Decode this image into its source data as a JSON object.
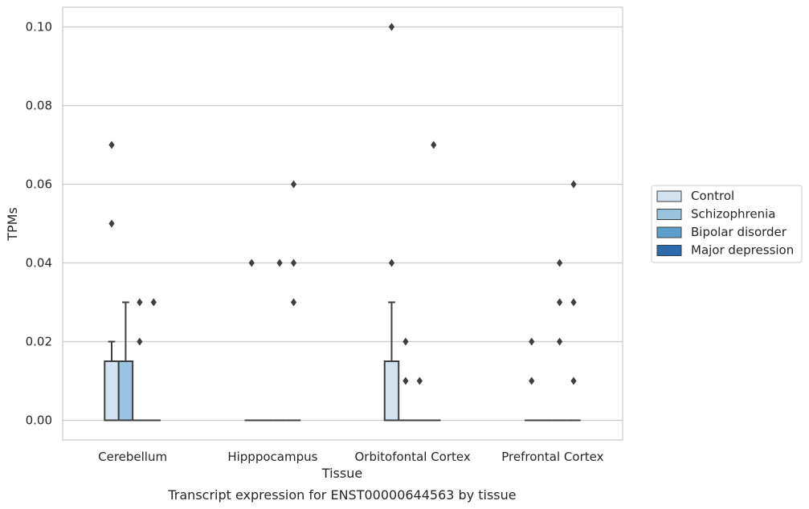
{
  "chart_data": {
    "type": "boxplot",
    "title": "Transcript expression for ENST00000644563 by tissue",
    "xlabel": "Tissue",
    "ylabel": "TPMs",
    "ylim": [
      -0.005,
      0.105
    ],
    "yticks": [
      "0.00",
      "0.02",
      "0.04",
      "0.06",
      "0.08",
      "0.10"
    ],
    "ytick_values": [
      0.0,
      0.02,
      0.04,
      0.06,
      0.08,
      0.1
    ],
    "grid": "horizontal",
    "legend_position": "right",
    "categories": [
      "Cerebellum",
      "Hipppocampus",
      "Orbitofontal Cortex",
      "Prefrontal Cortex"
    ],
    "series": [
      {
        "name": "Control",
        "color": "#d2e2f1",
        "boxes": [
          {
            "q1": 0.0,
            "median": 0.0,
            "q3": 0.015,
            "whisker_low": 0.0,
            "whisker_high": 0.02,
            "outliers": [
              0.05,
              0.07
            ]
          },
          {
            "q1": 0.0,
            "median": 0.0,
            "q3": 0.0,
            "whisker_low": 0.0,
            "whisker_high": 0.0,
            "outliers": [
              0.04
            ]
          },
          {
            "q1": 0.0,
            "median": 0.0,
            "q3": 0.015,
            "whisker_low": 0.0,
            "whisker_high": 0.03,
            "outliers": [
              0.04,
              0.1
            ]
          },
          {
            "q1": 0.0,
            "median": 0.0,
            "q3": 0.0,
            "whisker_low": 0.0,
            "whisker_high": 0.0,
            "outliers": [
              0.01,
              0.02
            ]
          }
        ]
      },
      {
        "name": "Schizophrenia",
        "color": "#9ac3df",
        "boxes": [
          {
            "q1": 0.0,
            "median": 0.0,
            "q3": 0.015,
            "whisker_low": 0.0,
            "whisker_high": 0.03,
            "outliers": []
          },
          {
            "q1": 0.0,
            "median": 0.0,
            "q3": 0.0,
            "whisker_low": 0.0,
            "whisker_high": 0.0,
            "outliers": []
          },
          {
            "q1": 0.0,
            "median": 0.0,
            "q3": 0.0,
            "whisker_low": 0.0,
            "whisker_high": 0.0,
            "outliers": [
              0.01,
              0.02
            ]
          },
          {
            "q1": 0.0,
            "median": 0.0,
            "q3": 0.0,
            "whisker_low": 0.0,
            "whisker_high": 0.0,
            "outliers": []
          }
        ]
      },
      {
        "name": "Bipolar disorder",
        "color": "#5a9fcd",
        "boxes": [
          {
            "q1": 0.0,
            "median": 0.0,
            "q3": 0.0,
            "whisker_low": 0.0,
            "whisker_high": 0.0,
            "outliers": [
              0.02,
              0.03
            ]
          },
          {
            "q1": 0.0,
            "median": 0.0,
            "q3": 0.0,
            "whisker_low": 0.0,
            "whisker_high": 0.0,
            "outliers": [
              0.04
            ]
          },
          {
            "q1": 0.0,
            "median": 0.0,
            "q3": 0.0,
            "whisker_low": 0.0,
            "whisker_high": 0.0,
            "outliers": [
              0.01
            ]
          },
          {
            "q1": 0.0,
            "median": 0.0,
            "q3": 0.0,
            "whisker_low": 0.0,
            "whisker_high": 0.0,
            "outliers": [
              0.02,
              0.03,
              0.04
            ]
          }
        ]
      },
      {
        "name": "Major depression",
        "color": "#2a6aad",
        "boxes": [
          {
            "q1": 0.0,
            "median": 0.0,
            "q3": 0.0,
            "whisker_low": 0.0,
            "whisker_high": 0.0,
            "outliers": [
              0.03
            ]
          },
          {
            "q1": 0.0,
            "median": 0.0,
            "q3": 0.0,
            "whisker_low": 0.0,
            "whisker_high": 0.0,
            "outliers": [
              0.03,
              0.04,
              0.06
            ]
          },
          {
            "q1": 0.0,
            "median": 0.0,
            "q3": 0.0,
            "whisker_low": 0.0,
            "whisker_high": 0.0,
            "outliers": [
              0.07
            ]
          },
          {
            "q1": 0.0,
            "median": 0.0,
            "q3": 0.0,
            "whisker_low": 0.0,
            "whisker_high": 0.0,
            "outliers": [
              0.01,
              0.03,
              0.06
            ]
          }
        ]
      }
    ]
  }
}
